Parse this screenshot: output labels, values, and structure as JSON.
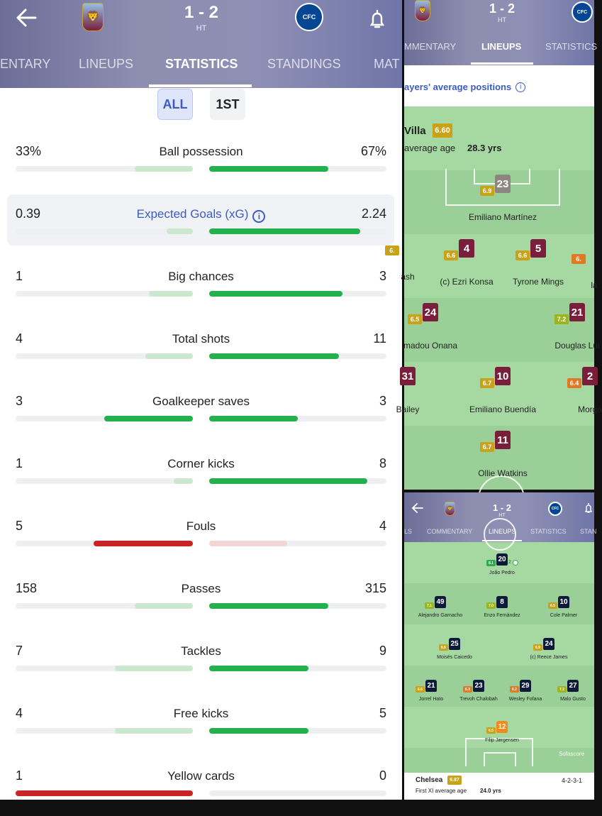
{
  "match": {
    "score": "1 - 2",
    "status": "HT"
  },
  "left": {
    "tabs": [
      "ENTARY",
      "LINEUPS",
      "STATISTICS",
      "STANDINGS",
      "MAT"
    ],
    "filters": [
      "ALL",
      "1ST"
    ],
    "stats": [
      {
        "label": "Ball possession",
        "home": "33%",
        "away": "67%",
        "home_frac": 0.33,
        "away_frac": 0.67,
        "color": "#22b14c"
      },
      {
        "label": "Expected Goals (xG)",
        "home": "0.39",
        "away": "2.24",
        "home_frac": 0.15,
        "away_frac": 0.85,
        "color": "#22b14c",
        "highlight": true
      },
      {
        "label": "Big chances",
        "home": "1",
        "away": "3",
        "home_frac": 0.25,
        "away_frac": 0.75,
        "color": "#22b14c"
      },
      {
        "label": "Total shots",
        "home": "4",
        "away": "11",
        "home_frac": 0.27,
        "away_frac": 0.73,
        "color": "#22b14c"
      },
      {
        "label": "Goalkeeper saves",
        "home": "3",
        "away": "3",
        "home_frac": 0.5,
        "away_frac": 0.5,
        "color": "#22b14c",
        "both": true
      },
      {
        "label": "Corner kicks",
        "home": "1",
        "away": "8",
        "home_frac": 0.11,
        "away_frac": 0.89,
        "color": "#22b14c"
      },
      {
        "label": "Fouls",
        "home": "5",
        "away": "4",
        "home_frac": 0.56,
        "away_frac": 0.44,
        "color": "#c92323",
        "homeLead": true
      },
      {
        "label": "Passes",
        "home": "158",
        "away": "315",
        "home_frac": 0.33,
        "away_frac": 0.67,
        "color": "#22b14c"
      },
      {
        "label": "Tackles",
        "home": "7",
        "away": "9",
        "home_frac": 0.44,
        "away_frac": 0.56,
        "color": "#22b14c"
      },
      {
        "label": "Free kicks",
        "home": "4",
        "away": "5",
        "home_frac": 0.44,
        "away_frac": 0.56,
        "color": "#22b14c"
      },
      {
        "label": "Yellow cards",
        "home": "1",
        "away": "0",
        "home_frac": 1.0,
        "away_frac": 0.0,
        "color": "#c92323",
        "homeLead": true
      }
    ]
  },
  "rt": {
    "tabs": [
      "MMENTARY",
      "LINEUPS",
      "STATISTICS"
    ],
    "section_title": "ayers' average positions",
    "team": "Villa",
    "team_rating": "6.60",
    "age_label": "average age",
    "age_value": "28.3 yrs",
    "players": [
      {
        "num": "23",
        "rating": "6.9",
        "name": "Emiliano Martínez",
        "shirt": "#8e8480",
        "rc": "#c9a21a"
      },
      {
        "num": "4",
        "rating": "6.6",
        "name": "(c) Ezri Konsa",
        "shirt": "#7a1e3c",
        "rc": "#c9a21a"
      },
      {
        "num": "5",
        "rating": "6.6",
        "name": "Tyrone Mings",
        "shirt": "#7a1e3c",
        "rc": "#c9a21a"
      },
      {
        "num": "24",
        "rating": "6.5",
        "name": "madou Onana",
        "shirt": "#7a1e3c",
        "rc": "#c9a21a"
      },
      {
        "num": "21",
        "rating": "7.2",
        "name": "Douglas Lui",
        "shirt": "#7a1e3c",
        "rc": "#9bb51e"
      },
      {
        "num": "31",
        "rating": "",
        "name": "Bailey",
        "shirt": "#7a1e3c",
        "rc": "#c9a21a"
      },
      {
        "num": "10",
        "rating": "6.7",
        "name": "Emiliano Buendía",
        "shirt": "#7a1e3c",
        "rc": "#c9a21a"
      },
      {
        "num": "2",
        "rating": "6.4",
        "name": "Morga",
        "shirt": "#7a1e3c",
        "rc": "#e07a24"
      },
      {
        "num": "11",
        "rating": "6.7",
        "name": "Ollie Watkins",
        "shirt": "#7a1e3c",
        "rc": "#c9a21a"
      },
      {
        "num": "",
        "rating": "6.",
        "name": "ash",
        "shirt": "#7a1e3c",
        "rc": "#c9a21a"
      },
      {
        "num": "",
        "rating": "6.",
        "name": "la",
        "shirt": "#7a1e3c",
        "rc": "#e07a24"
      }
    ]
  },
  "rb": {
    "tabs": [
      "LS",
      "COMMENTARY",
      "LINEUPS",
      "STATISTICS",
      "STAN"
    ],
    "team": "Chelsea",
    "team_rating": "6.87",
    "age_label": "First XI average age",
    "age_value": "24.0 yrs",
    "formation": "4-2-3-1",
    "watermark": "Sofascore",
    "players": [
      {
        "num": "20",
        "rating": "8.1",
        "name": "João Pedro",
        "rc": "#2fa84f",
        "goal": "2"
      },
      {
        "num": "49",
        "rating": "7.1",
        "name": "Alejandro Garnacho",
        "rc": "#9bb51e"
      },
      {
        "num": "8",
        "rating": "7.0",
        "name": "Enzo Fernández",
        "rc": "#9bb51e"
      },
      {
        "num": "10",
        "rating": "6.5",
        "name": "Cole Palmer",
        "rc": "#c9a21a"
      },
      {
        "num": "25",
        "rating": "6.6",
        "name": "Moisés Caicedo",
        "rc": "#c9a21a"
      },
      {
        "num": "24",
        "rating": "6.9",
        "name": "(c) Reece James",
        "rc": "#c9a21a"
      },
      {
        "num": "21",
        "rating": "6.6",
        "name": "Jorrel Hato",
        "rc": "#c9a21a"
      },
      {
        "num": "23",
        "rating": "6.3",
        "name": "Trevoh Chalobah",
        "rc": "#e07a24"
      },
      {
        "num": "29",
        "rating": "6.2",
        "name": "Wesley Fofana",
        "rc": "#e07a24"
      },
      {
        "num": "27",
        "rating": "7.2",
        "name": "Malo Gusto",
        "rc": "#9bb51e"
      },
      {
        "num": "12",
        "rating": "6.5",
        "name": "Filip Jørgensen",
        "rc": "#c9a21a",
        "gk": true
      }
    ]
  }
}
